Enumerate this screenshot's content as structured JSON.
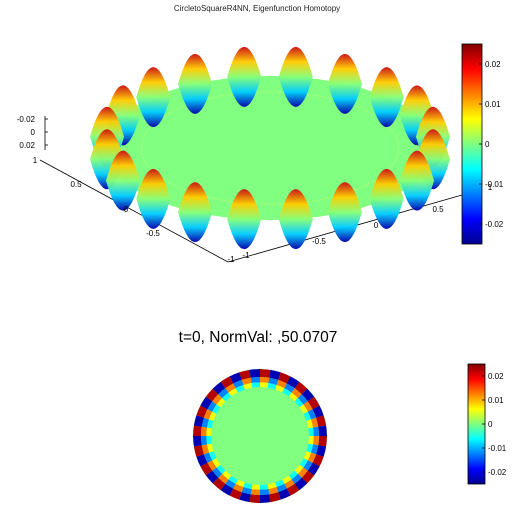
{
  "figure": {
    "suptitle": "CircletoSquareR4NN, Eigenfunction Homotopy",
    "subplot2_title": "t=0, NormVal: ,50.0707"
  },
  "chart_data": [
    {
      "type": "surface",
      "description_of_data": "eigenfunction on unit disk, angular mode 20 growing toward rim",
      "angular_mode": 20,
      "amplitude": 0.025,
      "x_ticks": [
        "-1",
        "-0.5",
        "0",
        "0.5",
        "1"
      ],
      "y_ticks": [
        "-1",
        "-0.5",
        "0",
        "0.5",
        "1"
      ],
      "z_ticks": [
        "-0.02",
        "0",
        "0.02"
      ],
      "xlim": [
        -1,
        1
      ],
      "ylim": [
        -1,
        1
      ],
      "zlim": [
        -0.025,
        0.025
      ],
      "colorbar": {
        "ticks": [
          "-0.02",
          "-0.01",
          "0",
          "0.01",
          "0.02"
        ],
        "range": [
          -0.025,
          0.025
        ],
        "colormap": "jet"
      }
    },
    {
      "type": "heatmap",
      "title": "t=0, NormVal: ,50.0707",
      "angular_mode": 20,
      "colorbar": {
        "ticks": [
          "-0.02",
          "-0.01",
          "0",
          "0.01",
          "0.02"
        ],
        "range": [
          -0.025,
          0.025
        ],
        "colormap": "jet"
      }
    }
  ]
}
